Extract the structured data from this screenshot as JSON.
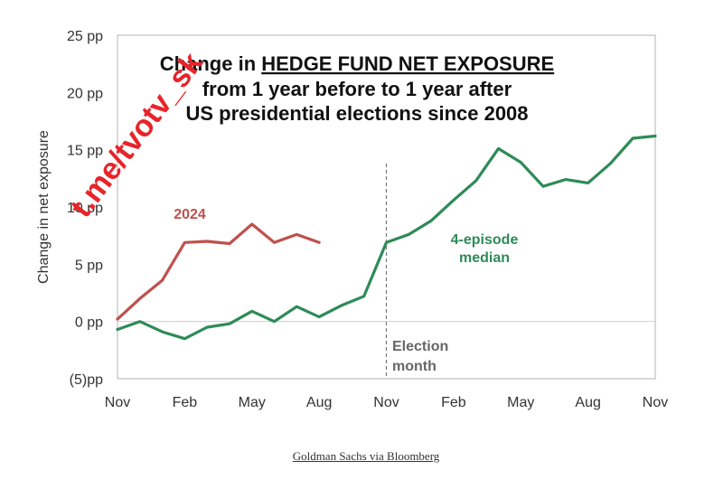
{
  "chart_data": {
    "type": "line",
    "title_parts": [
      "Change in ",
      "HEDGE FUND NET EXPOSURE"
    ],
    "title_line2": "from 1 year before to 1 year after",
    "title_line3": "US presidential elections since 2008",
    "ylabel": "Change in net exposure",
    "ylim": [
      -5,
      25
    ],
    "yticks": [
      {
        "value": 25,
        "label": "25 pp"
      },
      {
        "value": 20,
        "label": "20 pp"
      },
      {
        "value": 15,
        "label": "15 pp"
      },
      {
        "value": 10,
        "label": "10 pp"
      },
      {
        "value": 5,
        "label": "5 pp"
      },
      {
        "value": 0,
        "label": "0 pp"
      },
      {
        "value": -5,
        "label": "(5)pp"
      }
    ],
    "xlim": [
      -12,
      12
    ],
    "xticks": [
      {
        "value": -12,
        "label": "Nov"
      },
      {
        "value": -9,
        "label": "Feb"
      },
      {
        "value": -6,
        "label": "May"
      },
      {
        "value": -3,
        "label": "Aug"
      },
      {
        "value": 0,
        "label": "Nov"
      },
      {
        "value": 3,
        "label": "Feb"
      },
      {
        "value": 6,
        "label": "May"
      },
      {
        "value": 9,
        "label": "Aug"
      },
      {
        "value": 12,
        "label": "Nov"
      }
    ],
    "series": [
      {
        "name": "2024",
        "color": "#c0504d",
        "x": [
          -12,
          -11,
          -10,
          -9,
          -8,
          -7,
          -6,
          -5,
          -4,
          -3
        ],
        "y": [
          0.2,
          2.0,
          3.6,
          6.9,
          7.0,
          6.8,
          8.5,
          6.9,
          7.6,
          6.9
        ]
      },
      {
        "name": "4-episode median",
        "color": "#2e8b57",
        "x": [
          -12,
          -11,
          -10,
          -9,
          -8,
          -7,
          -6,
          -5,
          -4,
          -3,
          -2,
          -1,
          0,
          1,
          2,
          3,
          4,
          5,
          6,
          7,
          8,
          9,
          10,
          11,
          12
        ],
        "y": [
          -0.7,
          0.0,
          -0.9,
          -1.5,
          -0.5,
          -0.2,
          0.9,
          0.0,
          1.3,
          0.4,
          1.4,
          2.2,
          6.9,
          7.6,
          8.8,
          10.6,
          12.3,
          15.1,
          13.9,
          11.8,
          12.4,
          12.1,
          13.8,
          16.0,
          16.2
        ]
      }
    ],
    "series_labels": [
      {
        "lines": [
          "2024"
        ],
        "series": 0
      },
      {
        "lines": [
          "4-episode",
          "median"
        ],
        "series": 1
      }
    ],
    "annotation_lines": [
      "Election",
      "month"
    ],
    "event_x": 0,
    "grid": false
  },
  "watermark": "t.me/tvotv_sk",
  "source": "Goldman Sachs via Bloomberg"
}
